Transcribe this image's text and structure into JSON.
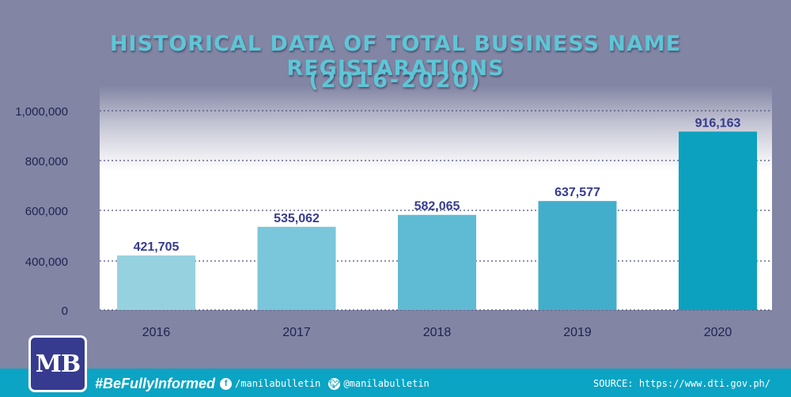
{
  "header": {
    "title_line1": "HISTORICAL DATA OF TOTAL BUSINESS NAME REGISTARATIONS",
    "title_line2": "(2016-2020)"
  },
  "chart_data": {
    "type": "bar",
    "categories": [
      "2016",
      "2017",
      "2018",
      "2019",
      "2020"
    ],
    "values": [
      421705,
      535062,
      582065,
      637577,
      916163
    ],
    "data_labels": [
      "421,705",
      "535,062",
      "582,065",
      "637,577",
      "916,163"
    ],
    "y_ticks": [
      0,
      400000,
      600000,
      800000,
      1000000
    ],
    "y_tick_labels": [
      "0",
      "400,000",
      "600,000",
      "800,000",
      "1,000,000"
    ],
    "grid": true,
    "bar_colors": [
      "#96d1e0",
      "#7ac6db",
      "#5fbad3",
      "#43aecb",
      "#0ba1bf"
    ],
    "label_color": "#363b8f"
  },
  "footer": {
    "logo_text": "MB",
    "hashtag": "#BeFullyInformed",
    "facebook_handle": "/manilabulletin",
    "twitter_handle": "@manilabulletin",
    "source": "SOURCE: https://www.dti.gov.ph/",
    "facebook_icon": "facebook-icon",
    "twitter_icon": "twitter-icon"
  }
}
